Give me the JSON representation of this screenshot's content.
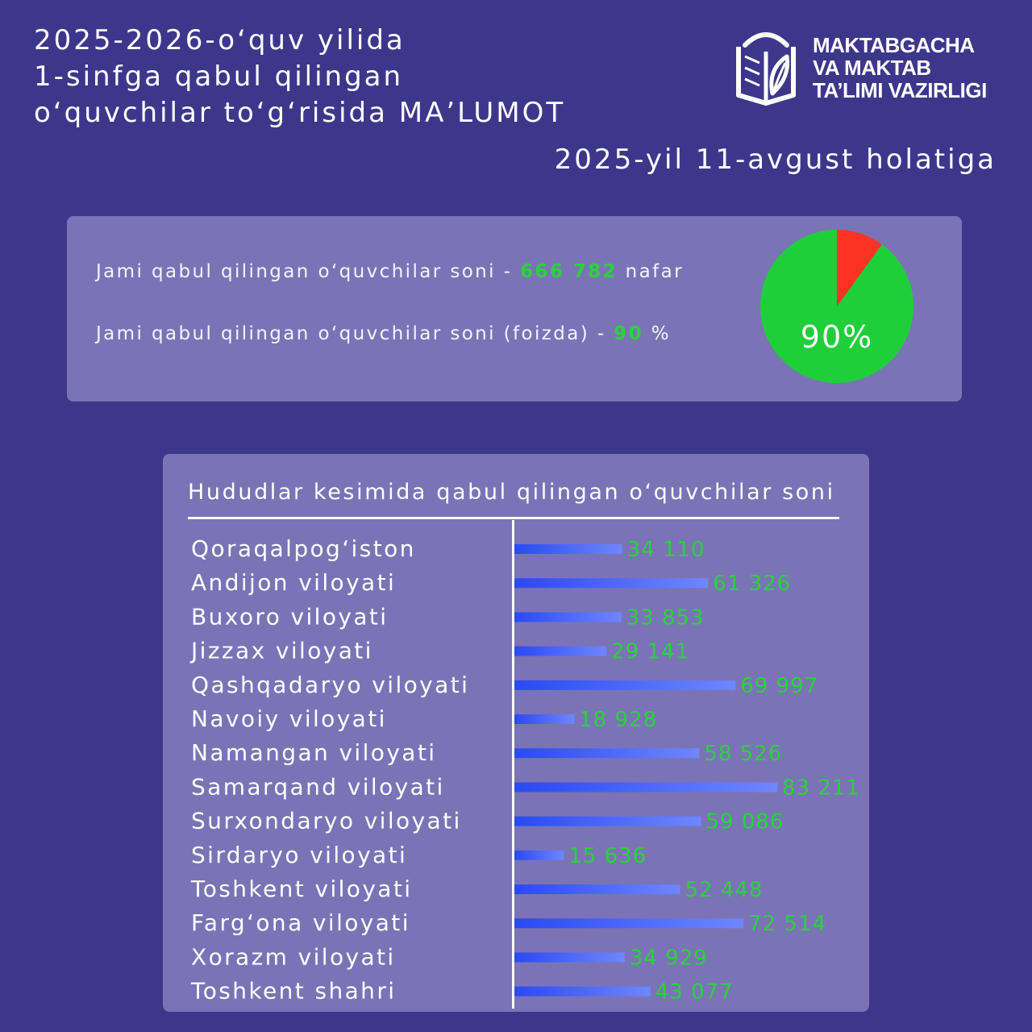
{
  "header": {
    "title_lines": [
      "2025-2026-o‘quv yilida",
      "1-sinfga qabul qilingan",
      "o‘quvchilar to‘g‘risida MA’LUMOT"
    ],
    "date": "2025-yil 11-avgust holatiga",
    "logo_lines": [
      "MAKTABGACHA",
      "VA MAKTAB",
      "TA’LIMI VAZIRLIGI"
    ],
    "logo_icon": "book-leaf-icon"
  },
  "summary": {
    "total_prefix": "Jami qabul qilingan o‘quvchilar soni - ",
    "total_value": "666 782",
    "total_suffix": " nafar",
    "percent_prefix": "Jami qabul qilingan o‘quvchilar soni (foizda) - ",
    "percent_value": "90",
    "percent_suffix": " %",
    "pie_label": "90%",
    "pie_percent": 90
  },
  "colors": {
    "background": "#3d378c",
    "panel": "#7a74b6",
    "value_green": "#2bd23c",
    "pie_green": "#1fcf3a",
    "pie_red": "#ff3322",
    "bar_blue": "#3357f5"
  },
  "chart_data": {
    "type": "bar",
    "orientation": "horizontal",
    "title": "Hududlar kesimida qabul qilingan o‘quvchilar soni",
    "categories": [
      "Qoraqalpog‘iston",
      "Andijon viloyati",
      "Buxoro viloyati",
      "Jizzax viloyati",
      "Qashqadaryo viloyati",
      "Navoiy viloyati",
      "Namangan viloyati",
      "Samarqand viloyati",
      "Surxondaryo viloyati",
      "Sirdaryo viloyati",
      "Toshkent viloyati",
      "Farg‘ona viloyati",
      "Xorazm viloyati",
      "Toshkent shahri"
    ],
    "values": [
      34110,
      61326,
      33853,
      29141,
      69997,
      18928,
      58526,
      83211,
      59086,
      15636,
      52448,
      72514,
      34929,
      43077
    ],
    "value_labels": [
      "34 110",
      "61 326",
      "33 853",
      "29 141",
      "69 997",
      "18 928",
      "58 526",
      "83 211",
      "59 086",
      "15 636",
      "52 448",
      "72 514",
      "34 929",
      "43 077"
    ],
    "xlim": [
      0,
      83211
    ]
  }
}
